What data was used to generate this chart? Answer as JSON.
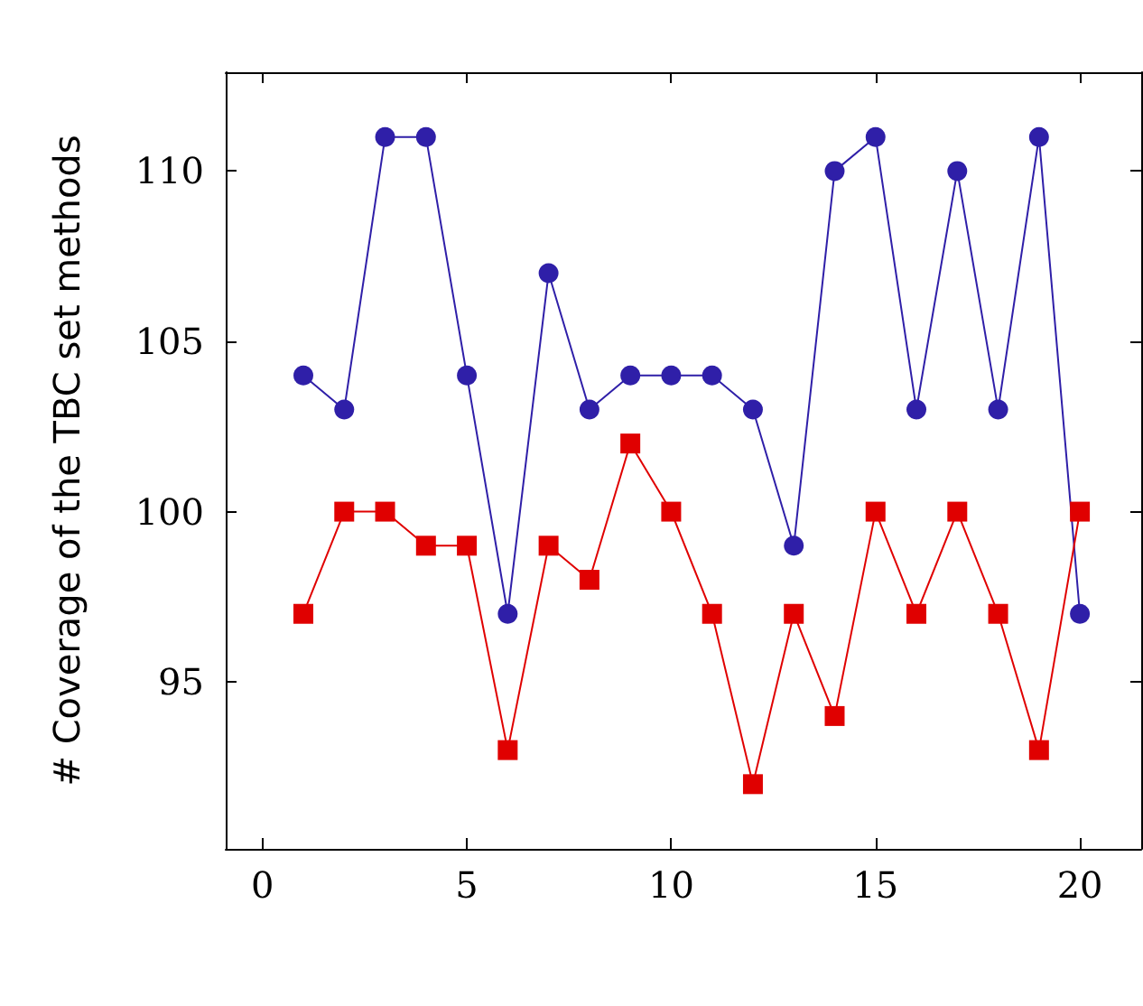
{
  "chart_data": {
    "type": "line",
    "ylabel": "# Coverage of the TBC set methods",
    "x": [
      1,
      2,
      3,
      4,
      5,
      6,
      7,
      8,
      9,
      10,
      11,
      12,
      13,
      14,
      15,
      16,
      17,
      18,
      19,
      20
    ],
    "series": [
      {
        "color": "#2f1fa8",
        "marker": "circle",
        "values": [
          104,
          103,
          111,
          111,
          104,
          97,
          107,
          103,
          104,
          104,
          104,
          103,
          99,
          110,
          111,
          103,
          110,
          103,
          111,
          97
        ]
      },
      {
        "color": "#e00000",
        "marker": "square",
        "values": [
          97,
          100,
          100,
          99,
          99,
          93,
          99,
          98,
          102,
          100,
          97,
          92,
          97,
          94,
          100,
          97,
          100,
          97,
          93,
          100
        ]
      }
    ],
    "xlim": [
      -0.9,
      21.5
    ],
    "ylim": [
      90.1,
      112.9
    ],
    "xticks": [
      0,
      5,
      10,
      15,
      20
    ],
    "yticks": [
      95,
      100,
      105,
      110
    ],
    "grid": false,
    "line_style": "solid"
  }
}
